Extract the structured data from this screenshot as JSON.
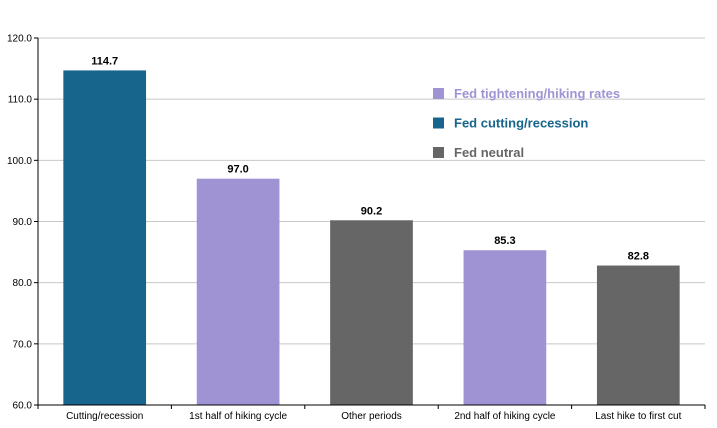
{
  "chart_data": {
    "type": "bar",
    "categories": [
      "Cutting/recession",
      "1st half of hiking cycle",
      "Other periods",
      "2nd half of hiking cycle",
      "Last hike to first cut"
    ],
    "values": [
      114.7,
      97.0,
      90.2,
      85.3,
      82.8
    ],
    "data_labels": [
      "114.7",
      "97.0",
      "90.2",
      "85.3",
      "82.8"
    ],
    "bar_series": [
      "cutting",
      "hiking",
      "neutral",
      "hiking",
      "neutral"
    ],
    "ylim": [
      60,
      120
    ],
    "yticks": [
      "60.0",
      "70.0",
      "80.0",
      "90.0",
      "100.0",
      "110.0",
      "120.0"
    ],
    "title": "",
    "xlabel": "",
    "ylabel": "",
    "grid": true,
    "legend_position": "top-right",
    "legend": [
      {
        "key": "hiking",
        "name": "Fed tightening/hiking rates",
        "color": "#a093d4",
        "text_color": "#a093d4"
      },
      {
        "key": "cutting",
        "name": "Fed cutting/recession",
        "color": "#17658c",
        "text_color": "#17658c"
      },
      {
        "key": "neutral",
        "name": "Fed neutral",
        "color": "#666666",
        "text_color": "#666666"
      }
    ]
  }
}
